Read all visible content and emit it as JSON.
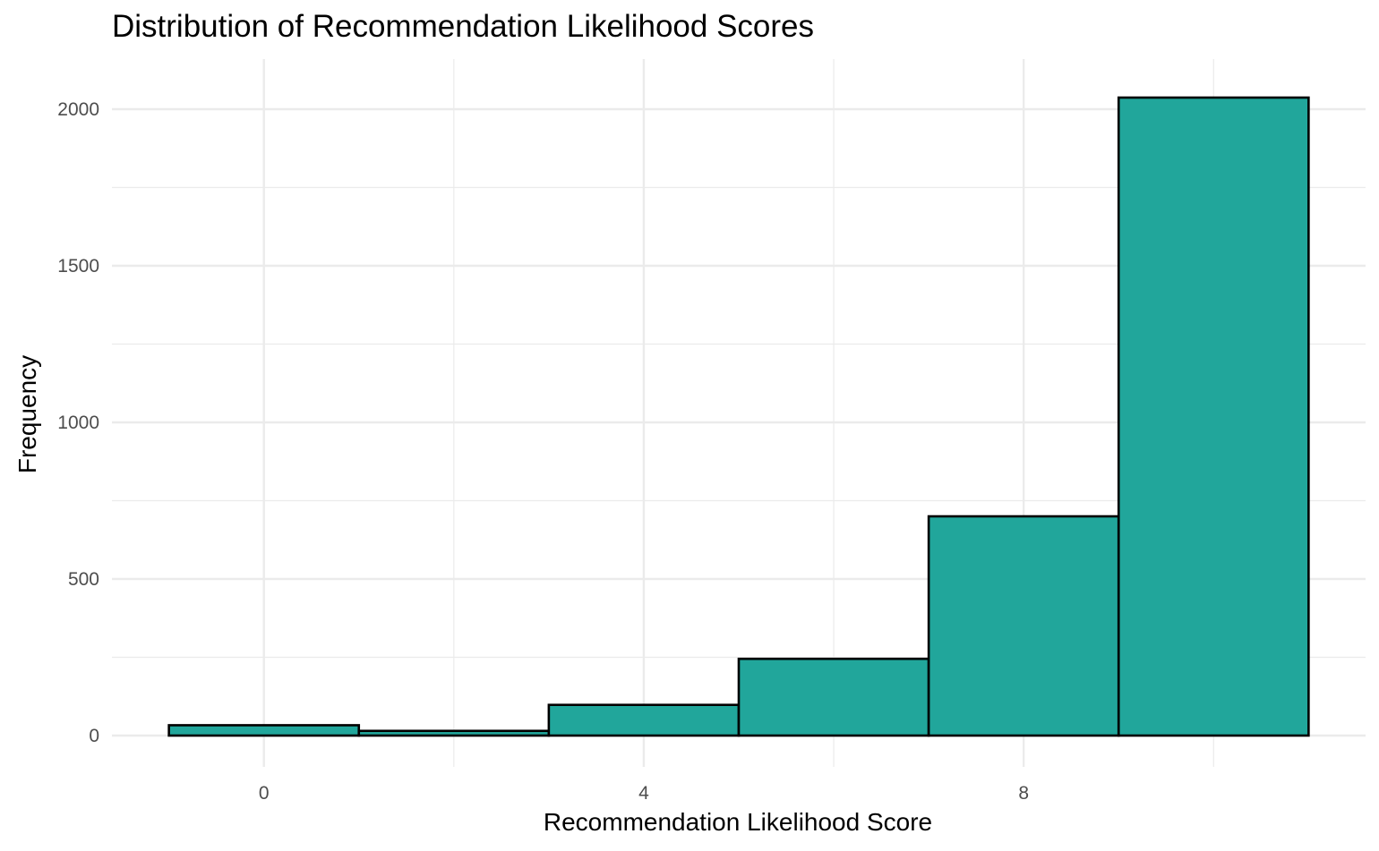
{
  "chart_data": {
    "type": "bar",
    "title": "Distribution of Recommendation Likelihood Scores",
    "xlabel": "Recommendation Likelihood Score",
    "ylabel": "Frequency",
    "bins": [
      {
        "x0": -1,
        "x1": 1,
        "value": 33
      },
      {
        "x0": 1,
        "x1": 3,
        "value": 15
      },
      {
        "x0": 3,
        "x1": 5,
        "value": 98
      },
      {
        "x0": 5,
        "x1": 7,
        "value": 245
      },
      {
        "x0": 7,
        "x1": 9,
        "value": 700
      },
      {
        "x0": 9,
        "x1": 11,
        "value": 2037
      }
    ],
    "xlim": [
      -1.6,
      11.6
    ],
    "ylim": [
      -100,
      2160
    ],
    "x_ticks": [
      0,
      4,
      8
    ],
    "x_tick_labels": [
      "0",
      "4",
      "8"
    ],
    "x_minor_ticks": [
      2,
      6,
      10
    ],
    "y_ticks": [
      0,
      500,
      1000,
      1500,
      2000
    ],
    "y_tick_labels": [
      "0",
      "500",
      "1000",
      "1500",
      "2000"
    ],
    "y_minor_ticks": [
      250,
      750,
      1250,
      1750
    ],
    "grid": true,
    "colors": {
      "fill": "#21a69b",
      "stroke": "#000000",
      "grid": "#ebebeb"
    }
  }
}
